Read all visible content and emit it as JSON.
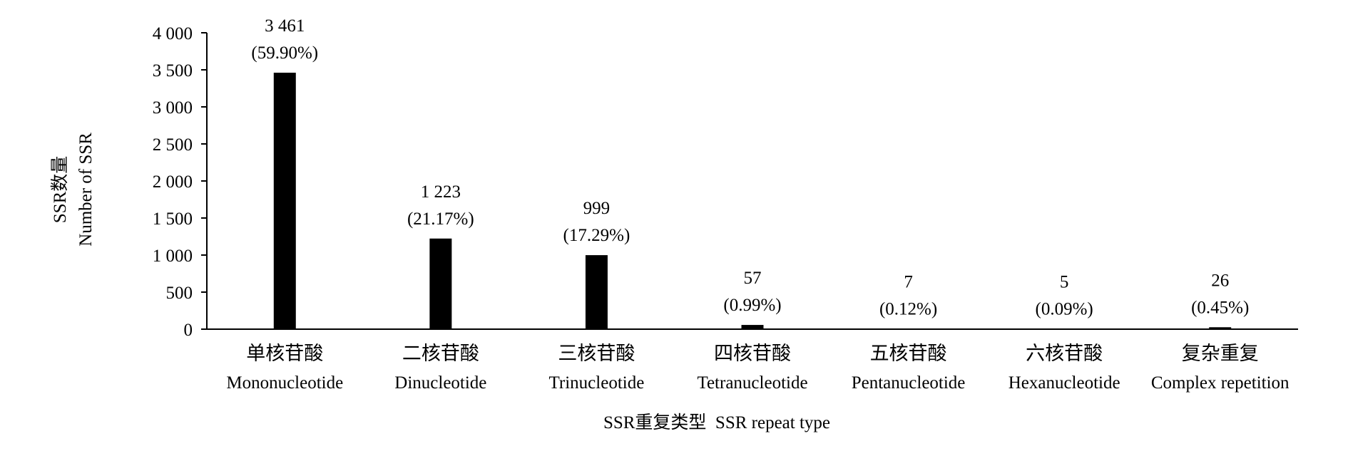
{
  "chart_data": {
    "type": "bar",
    "categories": [
      {
        "zh": "单核苷酸",
        "en": "Mononucleotide"
      },
      {
        "zh": "二核苷酸",
        "en": "Dinucleotide"
      },
      {
        "zh": "三核苷酸",
        "en": "Trinucleotide"
      },
      {
        "zh": "四核苷酸",
        "en": "Tetranucleotide"
      },
      {
        "zh": "五核苷酸",
        "en": "Pentanucleotide"
      },
      {
        "zh": "六核苷酸",
        "en": "Hexanucleotide"
      },
      {
        "zh": "复杂重复",
        "en": "Complex repetition"
      }
    ],
    "values": [
      3461,
      1223,
      999,
      57,
      7,
      5,
      26
    ],
    "value_labels": [
      "3 461",
      "1 223",
      "999",
      "57",
      "7",
      "5",
      "26"
    ],
    "percent_labels": [
      "(59.90%)",
      "(21.17%)",
      "(17.29%)",
      "(0.99%)",
      "(0.12%)",
      "(0.09%)",
      "(0.45%)"
    ],
    "ylabel": "SSR数量",
    "ylabel_en": "Number of SSR",
    "xlabel": "SSR重复类型  SSR repeat type",
    "ylim": [
      0,
      4000
    ],
    "yticks": [
      0,
      500,
      1000,
      1500,
      2000,
      2500,
      3000,
      3500,
      4000
    ],
    "ytick_labels": [
      "0",
      "500",
      "1 000",
      "1 500",
      "2 000",
      "2 500",
      "3 000",
      "3 500",
      "4 000"
    ],
    "grid": false,
    "bar_color": "#000000"
  }
}
